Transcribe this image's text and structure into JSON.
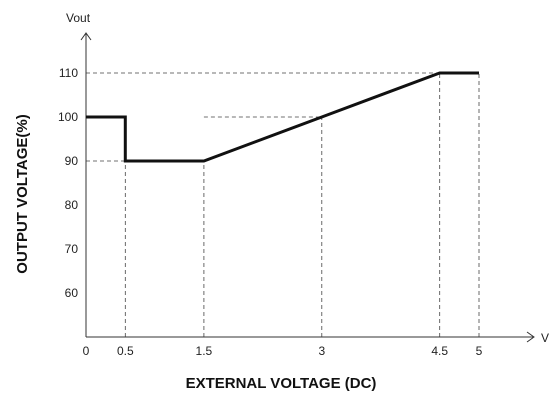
{
  "chart_data": {
    "type": "line",
    "title": "",
    "xlabel": "EXTERNAL VOLTAGE (DC)",
    "ylabel": "OUTPUT  VOLTAGE(%)",
    "x_unit": "V",
    "y_unit": "Vout",
    "xlim": [
      0,
      5
    ],
    "ylim": [
      50,
      110
    ],
    "x_ticks": [
      0,
      0.5,
      1.5,
      3,
      4.5,
      5
    ],
    "x_tick_labels": [
      "0",
      "0.5",
      "1.5",
      "3",
      "4.5",
      "5"
    ],
    "y_ticks": [
      60,
      70,
      80,
      90,
      100,
      110
    ],
    "y_tick_labels": [
      "60",
      "70",
      "80",
      "90",
      "100",
      "110"
    ],
    "grid": false,
    "series": [
      {
        "points": [
          [
            0,
            100
          ],
          [
            0.5,
            100
          ],
          [
            0.5,
            90
          ],
          [
            1.5,
            90
          ],
          [
            3,
            100
          ],
          [
            4.5,
            110
          ],
          [
            5,
            110
          ]
        ]
      }
    ],
    "reference_lines": [
      {
        "type": "horizontal",
        "y": 110,
        "x_from": 0,
        "x_to": 4.5
      },
      {
        "type": "horizontal",
        "y": 100,
        "x_from": 1.5,
        "x_to": 3
      },
      {
        "type": "horizontal",
        "y": 90,
        "x_from": 0,
        "x_to": 0.5
      },
      {
        "type": "vertical",
        "x": 0.5,
        "y_from": 50,
        "y_to": 90
      },
      {
        "type": "vertical",
        "x": 1.5,
        "y_from": 50,
        "y_to": 90
      },
      {
        "type": "vertical",
        "x": 3,
        "y_from": 50,
        "y_to": 100
      },
      {
        "type": "vertical",
        "x": 4.5,
        "y_from": 50,
        "y_to": 110
      },
      {
        "type": "vertical",
        "x": 5,
        "y_from": 50,
        "y_to": 110
      }
    ],
    "line_color": "#111111",
    "ref_line_color": "#444444"
  }
}
